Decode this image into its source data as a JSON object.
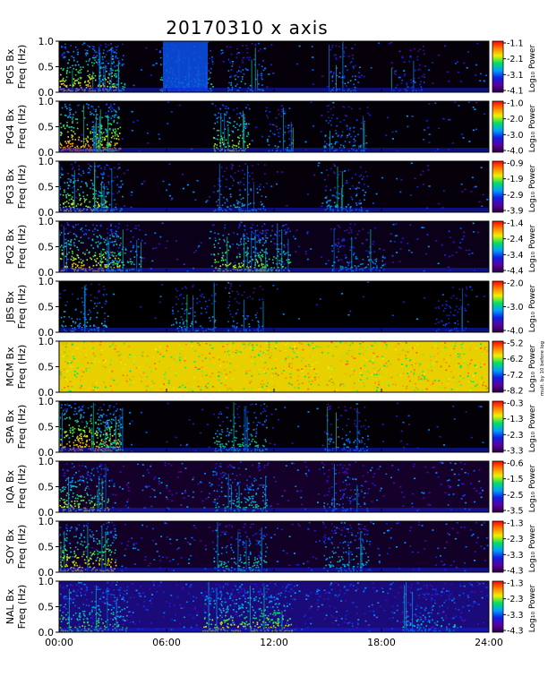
{
  "chart_data": {
    "type": "heatmap",
    "title": "20170310 x axis",
    "xlabel": "",
    "x_ticks": [
      "00:00",
      "06:00",
      "12:00",
      "18:00",
      "24:00"
    ],
    "colorbar_label": "Log₁₀ Power",
    "colormap": [
      "#2a0040",
      "#5a00a0",
      "#1020e0",
      "#00a0ff",
      "#00e060",
      "#f0f000",
      "#ff8000",
      "#ff0000"
    ],
    "panels": [
      {
        "station": "PG5 Bx",
        "ylabel": "Freq (Hz)",
        "y_ticks": [
          "0.0",
          "0.5",
          "1.0"
        ],
        "cbar_ticks": [
          "-1.1",
          "-2.1",
          "-3.1",
          "-4.1"
        ],
        "bg": "#06000a",
        "activity": [
          [
            0.5,
            4,
            0.9
          ],
          [
            2.6,
            1.5,
            0.6
          ],
          [
            6.5,
            3,
            0.6
          ],
          [
            10,
            2,
            0.5
          ],
          [
            15.5,
            1.5,
            0.45
          ],
          [
            19,
            2,
            0.3
          ]
        ],
        "hot": [
          [
            5.8,
            8.3,
            0.9,
            0.25
          ]
        ],
        "texture": 0.15
      },
      {
        "station": "PG4 Bx",
        "ylabel": "Freq (Hz)",
        "y_ticks": [
          "0.0",
          "0.5",
          "1.0"
        ],
        "cbar_ticks": [
          "-1.0",
          "-2.0",
          "-3.0",
          "-4.0"
        ],
        "bg": "#040008",
        "activity": [
          [
            0.6,
            4,
            1.0
          ],
          [
            2.2,
            1.3,
            0.7
          ],
          [
            9.2,
            2,
            0.8
          ],
          [
            12,
            1.5,
            0.45
          ],
          [
            15.5,
            2.5,
            0.45
          ]
        ],
        "hot": [],
        "texture": 0.12
      },
      {
        "station": "PG3 Bx",
        "ylabel": "Freq (Hz)",
        "y_ticks": [
          "0.0",
          "0.5",
          "1.0"
        ],
        "cbar_ticks": [
          "-0.9",
          "-1.9",
          "-2.9",
          "-3.9"
        ],
        "bg": "#050009",
        "activity": [
          [
            0.6,
            3,
            0.8
          ],
          [
            2.4,
            1.6,
            0.55
          ],
          [
            9.5,
            3,
            0.5
          ],
          [
            15.5,
            2.5,
            0.5
          ]
        ],
        "hot": [],
        "texture": 0.12
      },
      {
        "station": "PG2 Bx",
        "ylabel": "Freq (Hz)",
        "y_ticks": [
          "0.0",
          "0.5",
          "1.0"
        ],
        "cbar_ticks": [
          "-1.4",
          "-2.4",
          "-3.4",
          "-4.4"
        ],
        "bg": "#0a0018",
        "activity": [
          [
            0.6,
            4,
            0.9
          ],
          [
            3.2,
            2,
            0.6
          ],
          [
            9.5,
            3,
            0.8
          ],
          [
            11.5,
            2,
            0.7
          ],
          [
            16,
            3,
            0.45
          ]
        ],
        "hot": [],
        "texture": 0.2
      },
      {
        "station": "JBS Bx",
        "ylabel": "Freq (Hz)",
        "y_ticks": [
          "0.0",
          "0.5",
          "1.0"
        ],
        "cbar_ticks": [
          "-2.0",
          "-3.0",
          "-4.0"
        ],
        "bg": "#000000",
        "activity": [
          [
            0.6,
            3,
            0.5
          ],
          [
            7,
            2.5,
            0.5
          ],
          [
            10,
            2,
            0.4
          ],
          [
            21.5,
            2,
            0.35
          ]
        ],
        "hot": [],
        "texture": 0.05
      },
      {
        "station": "MCM Bx",
        "ylabel": "Freq (Hz)",
        "y_ticks": [
          "0.0",
          "0.5",
          "1.0"
        ],
        "cbar_ticks": [
          "-5.2",
          "-6.2",
          "-7.2",
          "-8.2"
        ],
        "bg": "#e8d000",
        "activity": [],
        "hot": [],
        "texture": 1.0,
        "note": "mult. by 10 before log"
      },
      {
        "station": "SPA Bx",
        "ylabel": "Freq (Hz)",
        "y_ticks": [
          "0.0",
          "0.5",
          "1.0"
        ],
        "cbar_ticks": [
          "-0.3",
          "-1.3",
          "-2.3",
          "-3.3"
        ],
        "bg": "#030006",
        "activity": [
          [
            0.6,
            4,
            1.0
          ],
          [
            2.5,
            1.5,
            0.7
          ],
          [
            9.5,
            3,
            0.6
          ],
          [
            15.5,
            2.5,
            0.45
          ]
        ],
        "hot": [],
        "texture": 0.1
      },
      {
        "station": "IQA Bx",
        "ylabel": "Freq (Hz)",
        "y_ticks": [
          "0.0",
          "0.5",
          "1.0"
        ],
        "cbar_ticks": [
          "-0.6",
          "-1.5",
          "-2.5",
          "-3.5"
        ],
        "bg": "#140028",
        "activity": [
          [
            0.7,
            3,
            0.8
          ],
          [
            9.5,
            3,
            0.6
          ],
          [
            15.5,
            2.5,
            0.4
          ]
        ],
        "hot": [],
        "texture": 0.35
      },
      {
        "station": "SOY Bx",
        "ylabel": "Freq (Hz)",
        "y_ticks": [
          "0.0",
          "0.5",
          "1.0"
        ],
        "cbar_ticks": [
          "-1.3",
          "-2.3",
          "-3.3",
          "-4.3"
        ],
        "bg": "#120026",
        "activity": [
          [
            0.7,
            3.5,
            0.9
          ],
          [
            9.5,
            3,
            0.6
          ],
          [
            15.5,
            2.5,
            0.55
          ]
        ],
        "hot": [],
        "texture": 0.3
      },
      {
        "station": "NAL Bx",
        "ylabel": "Freq (Hz)",
        "y_ticks": [
          "0.0",
          "0.5",
          "1.0"
        ],
        "cbar_ticks": [
          "-1.3",
          "-2.3",
          "-3.3",
          "-4.3"
        ],
        "bg": "#1b0a7a",
        "activity": [
          [
            1,
            4,
            0.7
          ],
          [
            9.5,
            5,
            0.8
          ],
          [
            20,
            3,
            0.5
          ]
        ],
        "hot": [],
        "texture": 0.6
      }
    ]
  }
}
